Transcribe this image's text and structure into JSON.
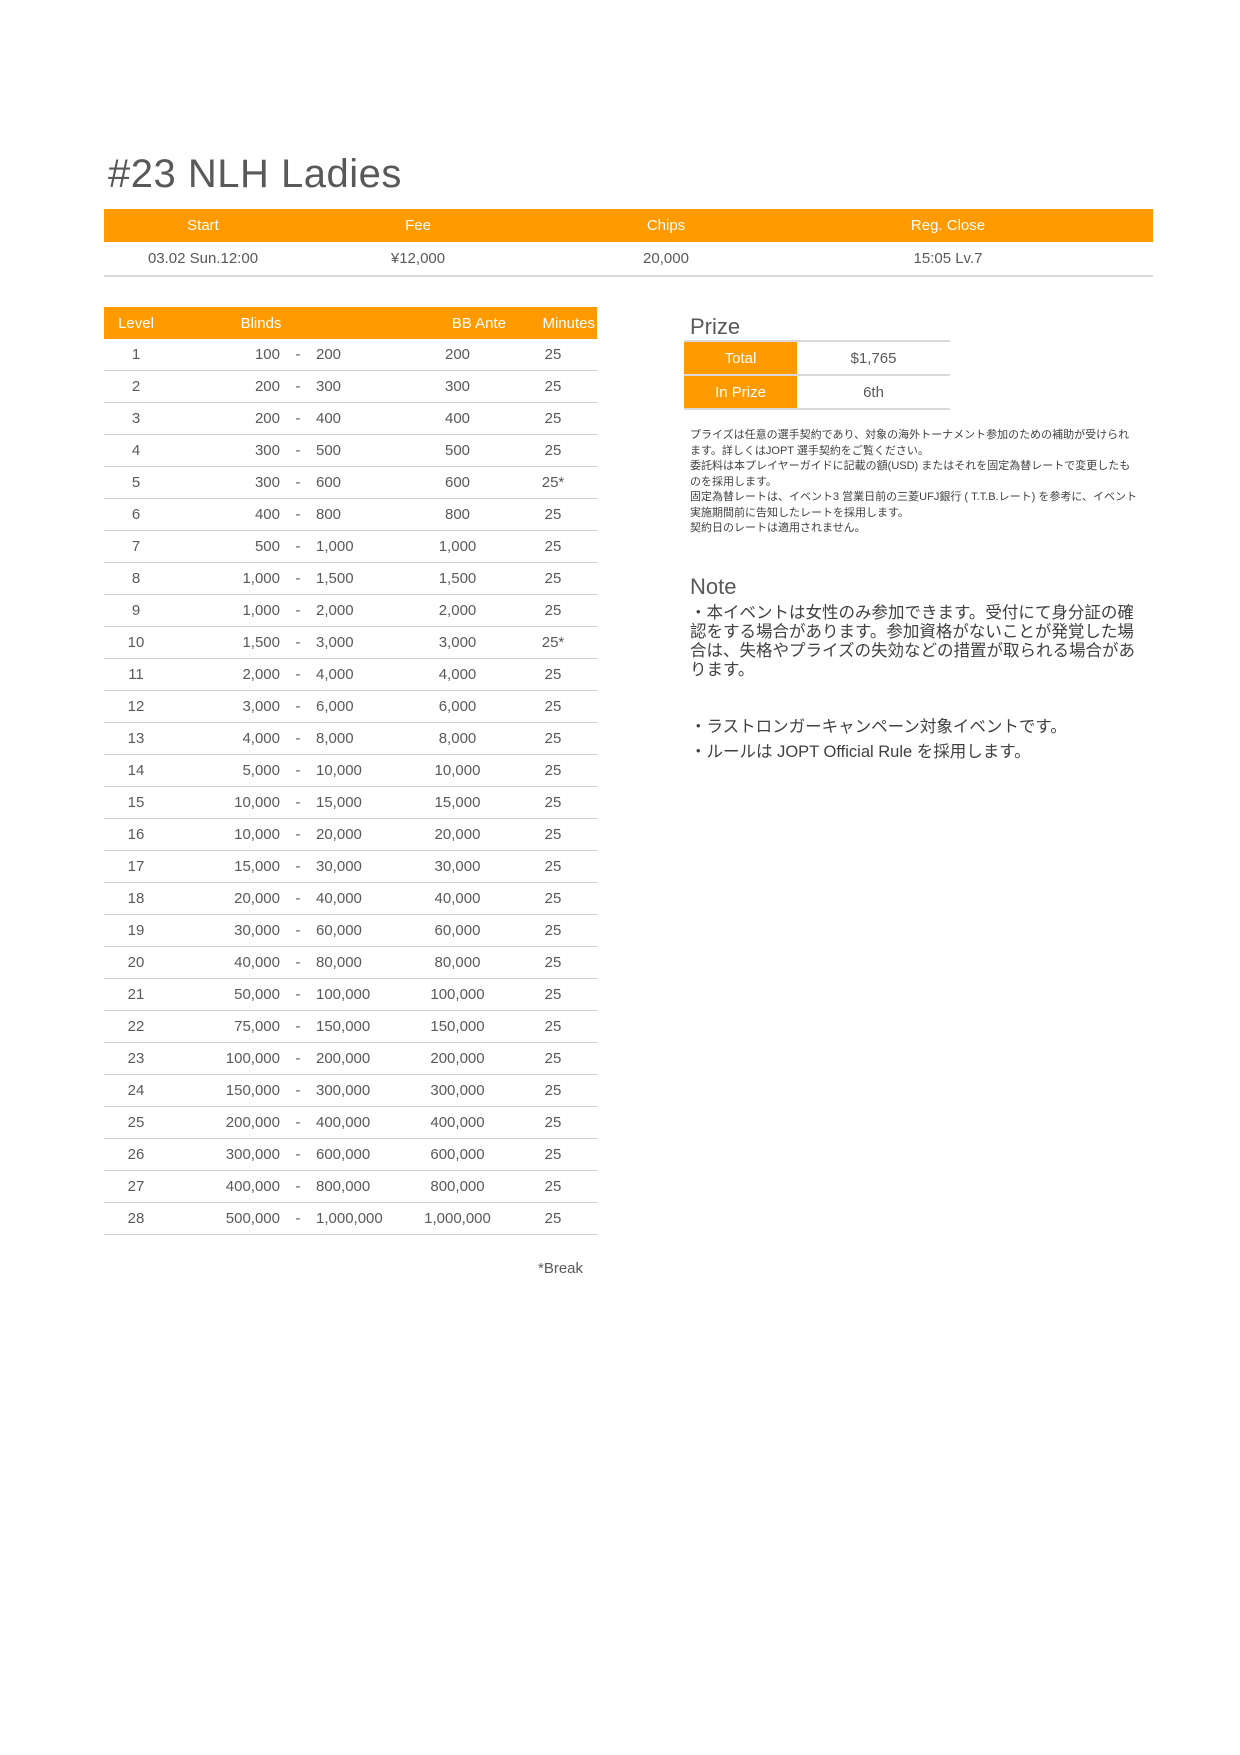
{
  "title": "#23 NLH Ladies",
  "colors": {
    "accent": "#ff9a00",
    "text": "#595959"
  },
  "info": {
    "headers": [
      "Start",
      "Fee",
      "Chips",
      "Reg. Close"
    ],
    "values": [
      "03.02 Sun.12:00",
      "¥12,000",
      "20,000",
      "15:05 Lv.7"
    ]
  },
  "levels": {
    "headers": [
      "Level",
      "Blinds",
      "BB Ante",
      "Minutes"
    ],
    "rows": [
      [
        "1",
        "100",
        "200",
        "200",
        "25"
      ],
      [
        "2",
        "200",
        "300",
        "300",
        "25"
      ],
      [
        "3",
        "200",
        "400",
        "400",
        "25"
      ],
      [
        "4",
        "300",
        "500",
        "500",
        "25"
      ],
      [
        "5",
        "300",
        "600",
        "600",
        "25*"
      ],
      [
        "6",
        "400",
        "800",
        "800",
        "25"
      ],
      [
        "7",
        "500",
        "1,000",
        "1,000",
        "25"
      ],
      [
        "8",
        "1,000",
        "1,500",
        "1,500",
        "25"
      ],
      [
        "9",
        "1,000",
        "2,000",
        "2,000",
        "25"
      ],
      [
        "10",
        "1,500",
        "3,000",
        "3,000",
        "25*"
      ],
      [
        "11",
        "2,000",
        "4,000",
        "4,000",
        "25"
      ],
      [
        "12",
        "3,000",
        "6,000",
        "6,000",
        "25"
      ],
      [
        "13",
        "4,000",
        "8,000",
        "8,000",
        "25"
      ],
      [
        "14",
        "5,000",
        "10,000",
        "10,000",
        "25"
      ],
      [
        "15",
        "10,000",
        "15,000",
        "15,000",
        "25"
      ],
      [
        "16",
        "10,000",
        "20,000",
        "20,000",
        "25"
      ],
      [
        "17",
        "15,000",
        "30,000",
        "30,000",
        "25"
      ],
      [
        "18",
        "20,000",
        "40,000",
        "40,000",
        "25"
      ],
      [
        "19",
        "30,000",
        "60,000",
        "60,000",
        "25"
      ],
      [
        "20",
        "40,000",
        "80,000",
        "80,000",
        "25"
      ],
      [
        "21",
        "50,000",
        "100,000",
        "100,000",
        "25"
      ],
      [
        "22",
        "75,000",
        "150,000",
        "150,000",
        "25"
      ],
      [
        "23",
        "100,000",
        "200,000",
        "200,000",
        "25"
      ],
      [
        "24",
        "150,000",
        "300,000",
        "300,000",
        "25"
      ],
      [
        "25",
        "200,000",
        "400,000",
        "400,000",
        "25"
      ],
      [
        "26",
        "300,000",
        "600,000",
        "600,000",
        "25"
      ],
      [
        "27",
        "400,000",
        "800,000",
        "800,000",
        "25"
      ],
      [
        "28",
        "500,000",
        "1,000,000",
        "1,000,000",
        "25"
      ]
    ],
    "separator": "-",
    "break_note": "*Break"
  },
  "prize": {
    "title": "Prize",
    "rows": [
      {
        "label": "Total",
        "value": "$1,765"
      },
      {
        "label": "In Prize",
        "value": "6th"
      }
    ],
    "notes": [
      "プライズは任意の選手契約であり、対象の海外トーナメント参加のための補助が受けられます。詳しくはJOPT 選手契約をご覧ください。",
      "委託料は本プレイヤーガイドに記載の額(USD) またはそれを固定為替レートで変更したものを採用します。",
      "固定為替レートは、イベント3 営業日前の三菱UFJ銀行 ( T.T.B.レート) を参考に、イベント実施期間前に告知したレートを採用します。",
      "契約日のレートは適用されません。"
    ]
  },
  "note": {
    "title": "Note",
    "lines": [
      "・本イベントは女性のみ参加できます。受付にて身分証の確認をする場合があります。参加資格がないことが発覚した場合は、失格やプライズの失効などの措置が取られる場合があります。",
      "・ラストロンガーキャンペーン対象イベントです。",
      "・ルールは JOPT Official Rule を採用します。"
    ]
  }
}
